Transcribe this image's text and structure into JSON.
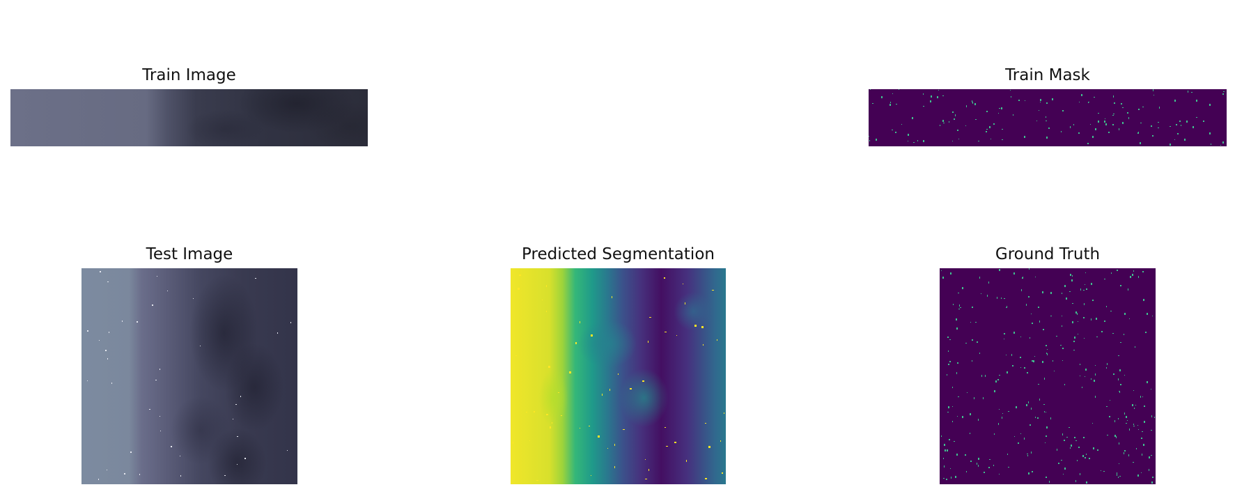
{
  "panels": {
    "train_image": {
      "title": "Train Image"
    },
    "train_mask": {
      "title": "Train Mask"
    },
    "test_image": {
      "title": "Test Image"
    },
    "predicted_segmentation": {
      "title": "Predicted Segmentation"
    },
    "ground_truth": {
      "title": "Ground Truth"
    }
  },
  "colors": {
    "mask_background": "#440154",
    "mask_foreground": "#3fbf8f",
    "viridis_yellow": "#fde725",
    "viridis_teal": "#21918c"
  }
}
